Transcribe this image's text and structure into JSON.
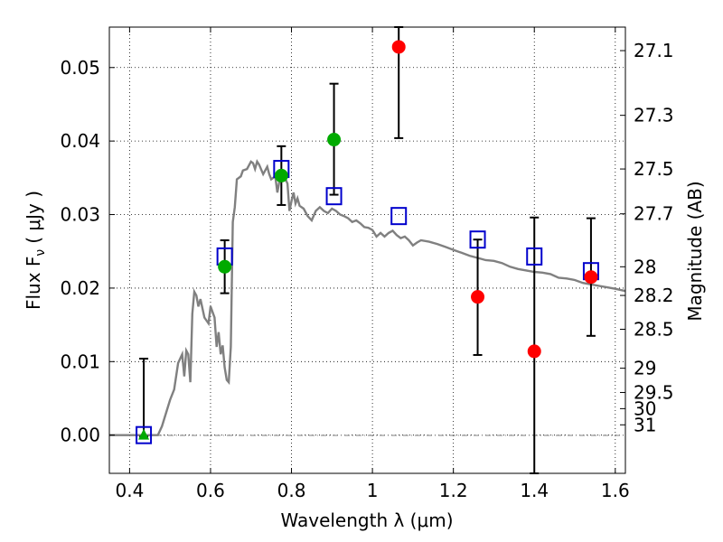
{
  "chart_data": {
    "type": "scatter",
    "xlabel": "Wavelength  λ (μm)",
    "ylabel": "Flux  F",
    "ylabel_sub": "ν",
    "ylabel_unit": "( μJy )",
    "ylabel_right": "Magnitude (AB)",
    "xlim": [
      0.35,
      1.625
    ],
    "ylim": [
      -0.0052,
      0.0555
    ],
    "x_ticks": [
      0.4,
      0.6,
      0.8,
      1.0,
      1.2,
      1.4,
      1.6
    ],
    "x_tick_labels": [
      "0.4",
      "0.6",
      "0.8",
      "1",
      "1.2",
      "1.4",
      "1.6"
    ],
    "y_ticks": [
      0.0,
      0.01,
      0.02,
      0.03,
      0.04,
      0.05
    ],
    "y_tick_labels": [
      "0.00",
      "0.01",
      "0.02",
      "0.03",
      "0.04",
      "0.05"
    ],
    "right_ticks": [
      {
        "label": "27.1",
        "flux": 0.0523
      },
      {
        "label": "27.3",
        "flux": 0.0435
      },
      {
        "label": "27.5",
        "flux": 0.0362
      },
      {
        "label": "27.7",
        "flux": 0.0301
      },
      {
        "label": "28",
        "flux": 0.0229
      },
      {
        "label": "28.2",
        "flux": 0.019
      },
      {
        "label": "28.5",
        "flux": 0.0144
      },
      {
        "label": "29",
        "flux": 0.0091
      },
      {
        "label": "29.5",
        "flux": 0.0058
      },
      {
        "label": "30",
        "flux": 0.0036
      },
      {
        "label": "31",
        "flux": 0.0014
      }
    ],
    "grid": true,
    "colors": {
      "model": "#808080",
      "detection": "#00aa00",
      "nondetection": "#ff0000",
      "model_box": "#0000cc",
      "errorbar": "#000000"
    },
    "model_spectrum": [
      [
        0.35,
        0.0
      ],
      [
        0.47,
        0.0
      ],
      [
        0.48,
        0.0012
      ],
      [
        0.5,
        0.0048
      ],
      [
        0.51,
        0.0062
      ],
      [
        0.52,
        0.0098
      ],
      [
        0.53,
        0.011
      ],
      [
        0.535,
        0.008
      ],
      [
        0.54,
        0.0115
      ],
      [
        0.545,
        0.011
      ],
      [
        0.55,
        0.0072
      ],
      [
        0.555,
        0.0165
      ],
      [
        0.56,
        0.0195
      ],
      [
        0.565,
        0.019
      ],
      [
        0.57,
        0.0175
      ],
      [
        0.575,
        0.0185
      ],
      [
        0.585,
        0.016
      ],
      [
        0.595,
        0.0152
      ],
      [
        0.6,
        0.0175
      ],
      [
        0.61,
        0.016
      ],
      [
        0.615,
        0.012
      ],
      [
        0.62,
        0.014
      ],
      [
        0.625,
        0.011
      ],
      [
        0.63,
        0.0122
      ],
      [
        0.635,
        0.0092
      ],
      [
        0.64,
        0.0075
      ],
      [
        0.645,
        0.0072
      ],
      [
        0.65,
        0.012
      ],
      [
        0.655,
        0.029
      ],
      [
        0.66,
        0.031
      ],
      [
        0.665,
        0.0348
      ],
      [
        0.675,
        0.0352
      ],
      [
        0.68,
        0.036
      ],
      [
        0.69,
        0.0362
      ],
      [
        0.7,
        0.0372
      ],
      [
        0.705,
        0.037
      ],
      [
        0.71,
        0.0362
      ],
      [
        0.715,
        0.0372
      ],
      [
        0.72,
        0.0368
      ],
      [
        0.73,
        0.0355
      ],
      [
        0.74,
        0.0365
      ],
      [
        0.745,
        0.0355
      ],
      [
        0.75,
        0.0348
      ],
      [
        0.76,
        0.0352
      ],
      [
        0.765,
        0.033
      ],
      [
        0.77,
        0.0345
      ],
      [
        0.78,
        0.0355
      ],
      [
        0.79,
        0.0342
      ],
      [
        0.795,
        0.0305
      ],
      [
        0.8,
        0.0318
      ],
      [
        0.805,
        0.033
      ],
      [
        0.81,
        0.0315
      ],
      [
        0.815,
        0.0322
      ],
      [
        0.82,
        0.0312
      ],
      [
        0.83,
        0.0308
      ],
      [
        0.84,
        0.0298
      ],
      [
        0.85,
        0.0292
      ],
      [
        0.86,
        0.0305
      ],
      [
        0.87,
        0.031
      ],
      [
        0.88,
        0.0305
      ],
      [
        0.89,
        0.0302
      ],
      [
        0.9,
        0.0308
      ],
      [
        0.91,
        0.0305
      ],
      [
        0.92,
        0.03
      ],
      [
        0.93,
        0.0298
      ],
      [
        0.94,
        0.0295
      ],
      [
        0.95,
        0.029
      ],
      [
        0.96,
        0.0292
      ],
      [
        0.97,
        0.0288
      ],
      [
        0.98,
        0.0283
      ],
      [
        0.99,
        0.0282
      ],
      [
        1.0,
        0.0279
      ],
      [
        1.01,
        0.027
      ],
      [
        1.02,
        0.0275
      ],
      [
        1.03,
        0.027
      ],
      [
        1.04,
        0.0275
      ],
      [
        1.05,
        0.0278
      ],
      [
        1.06,
        0.0272
      ],
      [
        1.07,
        0.0268
      ],
      [
        1.08,
        0.027
      ],
      [
        1.09,
        0.0265
      ],
      [
        1.1,
        0.0258
      ],
      [
        1.11,
        0.0262
      ],
      [
        1.12,
        0.0265
      ],
      [
        1.14,
        0.0263
      ],
      [
        1.16,
        0.026
      ],
      [
        1.18,
        0.0256
      ],
      [
        1.2,
        0.0252
      ],
      [
        1.22,
        0.0248
      ],
      [
        1.24,
        0.0244
      ],
      [
        1.26,
        0.0241
      ],
      [
        1.28,
        0.0238
      ],
      [
        1.3,
        0.0237
      ],
      [
        1.32,
        0.0234
      ],
      [
        1.34,
        0.0229
      ],
      [
        1.36,
        0.0226
      ],
      [
        1.38,
        0.0224
      ],
      [
        1.4,
        0.0222
      ],
      [
        1.42,
        0.0221
      ],
      [
        1.44,
        0.0219
      ],
      [
        1.46,
        0.0214
      ],
      [
        1.48,
        0.0213
      ],
      [
        1.5,
        0.0211
      ],
      [
        1.52,
        0.0207
      ],
      [
        1.54,
        0.0205
      ],
      [
        1.56,
        0.0203
      ],
      [
        1.58,
        0.0201
      ],
      [
        1.6,
        0.0199
      ],
      [
        1.625,
        0.0196
      ]
    ],
    "model_points": [
      {
        "x": 0.435,
        "y": 0.0
      },
      {
        "x": 0.635,
        "y": 0.0243
      },
      {
        "x": 0.775,
        "y": 0.0362
      },
      {
        "x": 0.905,
        "y": 0.0325
      },
      {
        "x": 1.065,
        "y": 0.0298
      },
      {
        "x": 1.26,
        "y": 0.0266
      },
      {
        "x": 1.4,
        "y": 0.0243
      },
      {
        "x": 1.54,
        "y": 0.0223
      }
    ],
    "observations": [
      {
        "x": 0.435,
        "y": 0.0,
        "err_low": -0.0002,
        "err_high": 0.0104,
        "marker": "triangle",
        "color": "detection"
      },
      {
        "x": 0.635,
        "y": 0.0229,
        "err_low": 0.0193,
        "err_high": 0.0265,
        "marker": "circle",
        "color": "detection"
      },
      {
        "x": 0.775,
        "y": 0.0353,
        "err_low": 0.0313,
        "err_high": 0.0393,
        "marker": "circle",
        "color": "detection"
      },
      {
        "x": 0.905,
        "y": 0.0402,
        "err_low": 0.0327,
        "err_high": 0.0478,
        "marker": "circle",
        "color": "detection"
      },
      {
        "x": 1.065,
        "y": 0.0528,
        "err_low": 0.0404,
        "err_high": 0.0555,
        "marker": "circle",
        "color": "nondetection"
      },
      {
        "x": 1.26,
        "y": 0.0188,
        "err_low": 0.0109,
        "err_high": 0.0266,
        "marker": "circle",
        "color": "nondetection"
      },
      {
        "x": 1.4,
        "y": 0.0114,
        "err_low": -0.0052,
        "err_high": 0.0296,
        "marker": "circle",
        "color": "nondetection"
      },
      {
        "x": 1.54,
        "y": 0.0215,
        "err_low": 0.0135,
        "err_high": 0.0295,
        "marker": "circle",
        "color": "nondetection"
      }
    ]
  }
}
